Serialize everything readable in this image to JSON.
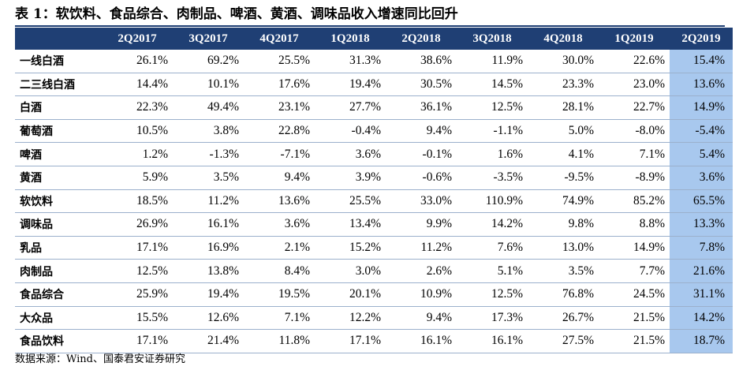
{
  "title": "表 1：软饮料、食品综合、肉制品、啤酒、黄酒、调味品收入增速同比回升",
  "table": {
    "headers": [
      "",
      "2Q2017",
      "3Q2017",
      "4Q2017",
      "1Q2018",
      "2Q2018",
      "3Q2018",
      "4Q2018",
      "1Q2019",
      "2Q2019"
    ],
    "rows": [
      {
        "label": "一线白酒",
        "values": [
          "26.1%",
          "69.2%",
          "25.5%",
          "31.3%",
          "38.6%",
          "11.9%",
          "30.0%",
          "22.6%",
          "15.4%"
        ]
      },
      {
        "label": "二三线白酒",
        "values": [
          "14.4%",
          "10.1%",
          "17.6%",
          "19.4%",
          "30.5%",
          "14.5%",
          "23.3%",
          "23.0%",
          "13.6%"
        ]
      },
      {
        "label": "白酒",
        "values": [
          "22.3%",
          "49.4%",
          "23.1%",
          "27.7%",
          "36.1%",
          "12.5%",
          "28.1%",
          "22.7%",
          "14.9%"
        ]
      },
      {
        "label": "葡萄酒",
        "values": [
          "10.5%",
          "3.8%",
          "22.8%",
          "-0.4%",
          "9.4%",
          "-1.1%",
          "5.0%",
          "-8.0%",
          "-5.4%"
        ]
      },
      {
        "label": "啤酒",
        "values": [
          "1.2%",
          "-1.3%",
          "-7.1%",
          "3.6%",
          "-0.1%",
          "1.6%",
          "4.1%",
          "7.1%",
          "5.4%"
        ]
      },
      {
        "label": "黄酒",
        "values": [
          "5.9%",
          "3.5%",
          "9.4%",
          "3.9%",
          "-0.6%",
          "-3.5%",
          "-9.5%",
          "-8.9%",
          "3.6%"
        ]
      },
      {
        "label": "软饮料",
        "values": [
          "18.5%",
          "11.2%",
          "13.6%",
          "25.5%",
          "33.0%",
          "110.9%",
          "74.9%",
          "85.2%",
          "65.5%"
        ]
      },
      {
        "label": "调味品",
        "values": [
          "26.9%",
          "16.1%",
          "3.6%",
          "13.4%",
          "9.9%",
          "14.2%",
          "9.8%",
          "8.8%",
          "13.3%"
        ]
      },
      {
        "label": "乳品",
        "values": [
          "17.1%",
          "16.9%",
          "2.1%",
          "15.2%",
          "11.2%",
          "7.6%",
          "13.0%",
          "14.9%",
          "7.8%"
        ]
      },
      {
        "label": "肉制品",
        "values": [
          "12.5%",
          "13.8%",
          "8.4%",
          "3.0%",
          "2.6%",
          "5.1%",
          "3.5%",
          "7.7%",
          "21.6%"
        ]
      },
      {
        "label": "食品综合",
        "values": [
          "25.9%",
          "19.4%",
          "19.5%",
          "20.1%",
          "10.9%",
          "12.5%",
          "76.8%",
          "24.5%",
          "31.1%"
        ]
      },
      {
        "label": "大众品",
        "values": [
          "15.5%",
          "12.6%",
          "7.1%",
          "12.2%",
          "9.4%",
          "17.3%",
          "26.7%",
          "21.5%",
          "14.2%"
        ]
      },
      {
        "label": "食品饮料",
        "values": [
          "17.1%",
          "21.4%",
          "11.8%",
          "17.1%",
          "16.1%",
          "16.1%",
          "27.5%",
          "21.5%",
          "18.7%"
        ]
      }
    ]
  },
  "source": "数据来源：Wind、国泰君安证券研究",
  "colors": {
    "header_bg": "#1f3f74",
    "header_text": "#ffffff",
    "highlight_column": "#a8c8ee",
    "row_rule": "#9bb0cc"
  }
}
